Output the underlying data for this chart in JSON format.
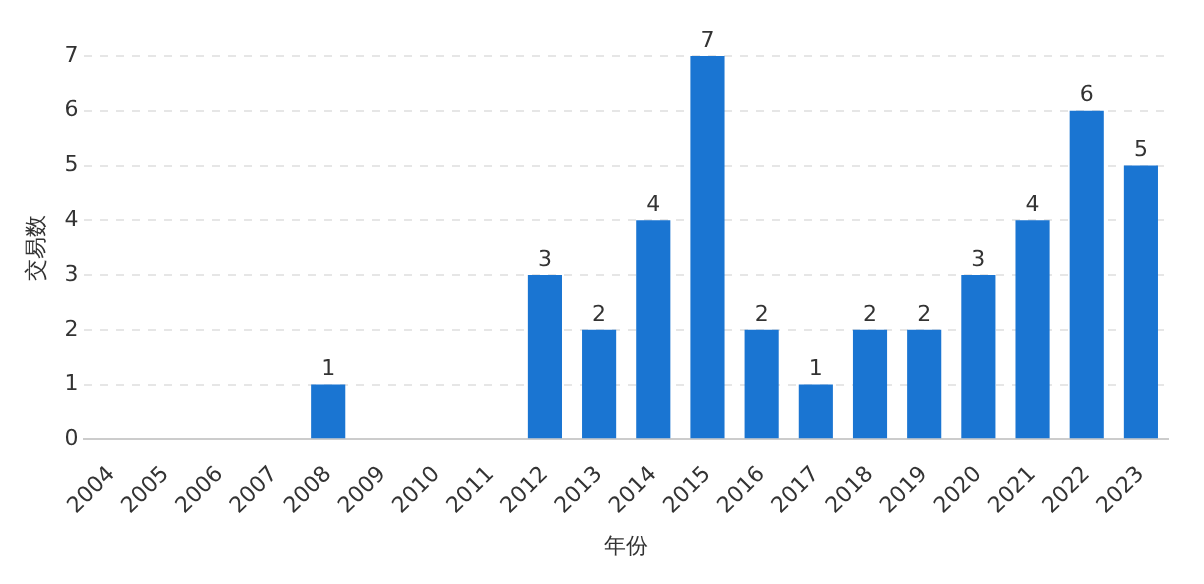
{
  "chart_data": {
    "type": "bar",
    "xlabel": "年份",
    "ylabel": "交易数",
    "categories": [
      "2004",
      "2005",
      "2006",
      "2007",
      "2008",
      "2009",
      "2010",
      "2011",
      "2012",
      "2013",
      "2014",
      "2015",
      "2016",
      "2017",
      "2018",
      "2019",
      "2020",
      "2021",
      "2022",
      "2023"
    ],
    "values": [
      0,
      0,
      0,
      0,
      1,
      0,
      0,
      0,
      3,
      2,
      4,
      7,
      2,
      1,
      2,
      2,
      3,
      4,
      6,
      5
    ],
    "value_labels": [
      null,
      null,
      null,
      null,
      "1",
      null,
      null,
      null,
      "3",
      "2",
      "4",
      "7",
      "2",
      "1",
      "2",
      "2",
      "3",
      "4",
      "6",
      "5"
    ],
    "color": "#1a75d2",
    "ylim": [
      0,
      7
    ],
    "yticks": [
      0,
      1,
      2,
      3,
      4,
      5,
      6,
      7
    ],
    "grid": "y",
    "legend": false
  }
}
